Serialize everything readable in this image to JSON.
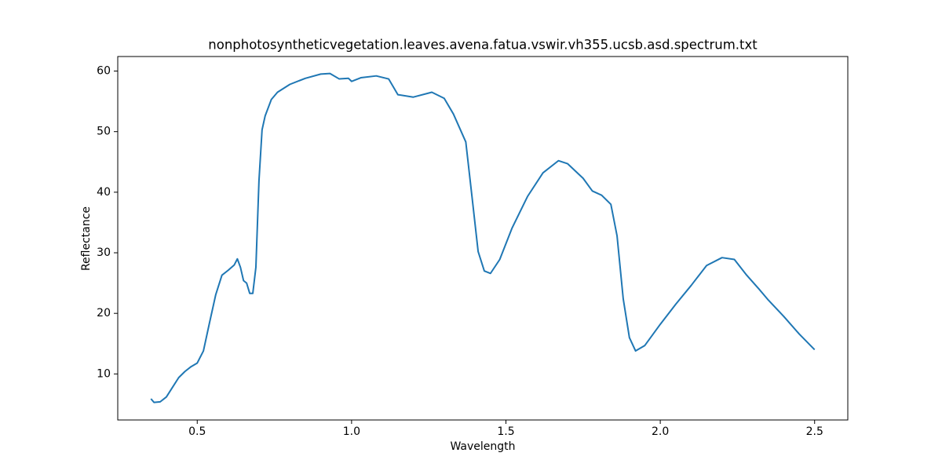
{
  "chart_data": {
    "type": "line",
    "title": "nonphotosyntheticvegetation.leaves.avena.fatua.vswir.vh355.ucsb.asd.spectrum.txt",
    "xlabel": "Wavelength",
    "ylabel": "Reflectance",
    "grid": false,
    "xlim": [
      0.2425,
      2.6075
    ],
    "ylim": [
      2.4,
      62.4
    ],
    "xticks": [
      0.5,
      {
        "value": 1,
        "label": "1.0"
      },
      1.5,
      {
        "value": 2,
        "label": "2.0"
      },
      2.5
    ],
    "yticks": [
      10,
      20,
      30,
      40,
      50,
      60
    ],
    "x": [
      0.35,
      0.36,
      0.38,
      0.4,
      0.42,
      0.44,
      0.46,
      0.48,
      0.5,
      0.52,
      0.54,
      0.56,
      0.58,
      0.6,
      0.62,
      0.63,
      0.64,
      0.65,
      0.66,
      0.67,
      0.68,
      0.69,
      0.7,
      0.71,
      0.72,
      0.74,
      0.76,
      0.8,
      0.85,
      0.9,
      0.93,
      0.96,
      0.99,
      1.0,
      1.03,
      1.08,
      1.12,
      1.15,
      1.2,
      1.26,
      1.3,
      1.33,
      1.37,
      1.39,
      1.41,
      1.43,
      1.45,
      1.48,
      1.52,
      1.57,
      1.62,
      1.67,
      1.7,
      1.75,
      1.78,
      1.81,
      1.84,
      1.86,
      1.88,
      1.9,
      1.92,
      1.95,
      2.0,
      2.05,
      2.1,
      2.15,
      2.2,
      2.24,
      2.28,
      2.32,
      2.35,
      2.4,
      2.45,
      2.5
    ],
    "series": [
      {
        "name": "spectrum",
        "color": "#1f77b4",
        "values": [
          5.9,
          5.3,
          5.4,
          6.2,
          7.8,
          9.4,
          10.4,
          11.2,
          11.8,
          13.8,
          18.5,
          23.1,
          26.3,
          27.1,
          28.0,
          29.0,
          27.6,
          25.4,
          25.0,
          23.3,
          23.3,
          27.6,
          41.9,
          50.3,
          52.6,
          55.3,
          56.5,
          57.8,
          58.8,
          59.5,
          59.6,
          58.7,
          58.8,
          58.3,
          58.9,
          59.2,
          58.7,
          56.1,
          55.7,
          56.5,
          55.5,
          52.9,
          48.3,
          39.3,
          30.2,
          27.0,
          26.6,
          28.9,
          34.1,
          39.3,
          43.2,
          45.2,
          44.7,
          42.3,
          40.2,
          39.5,
          38.0,
          32.8,
          22.4,
          16.0,
          13.8,
          14.7,
          18.2,
          21.5,
          24.6,
          27.9,
          29.2,
          28.9,
          26.3,
          24.0,
          22.2,
          19.5,
          16.6,
          14.0
        ]
      }
    ]
  }
}
